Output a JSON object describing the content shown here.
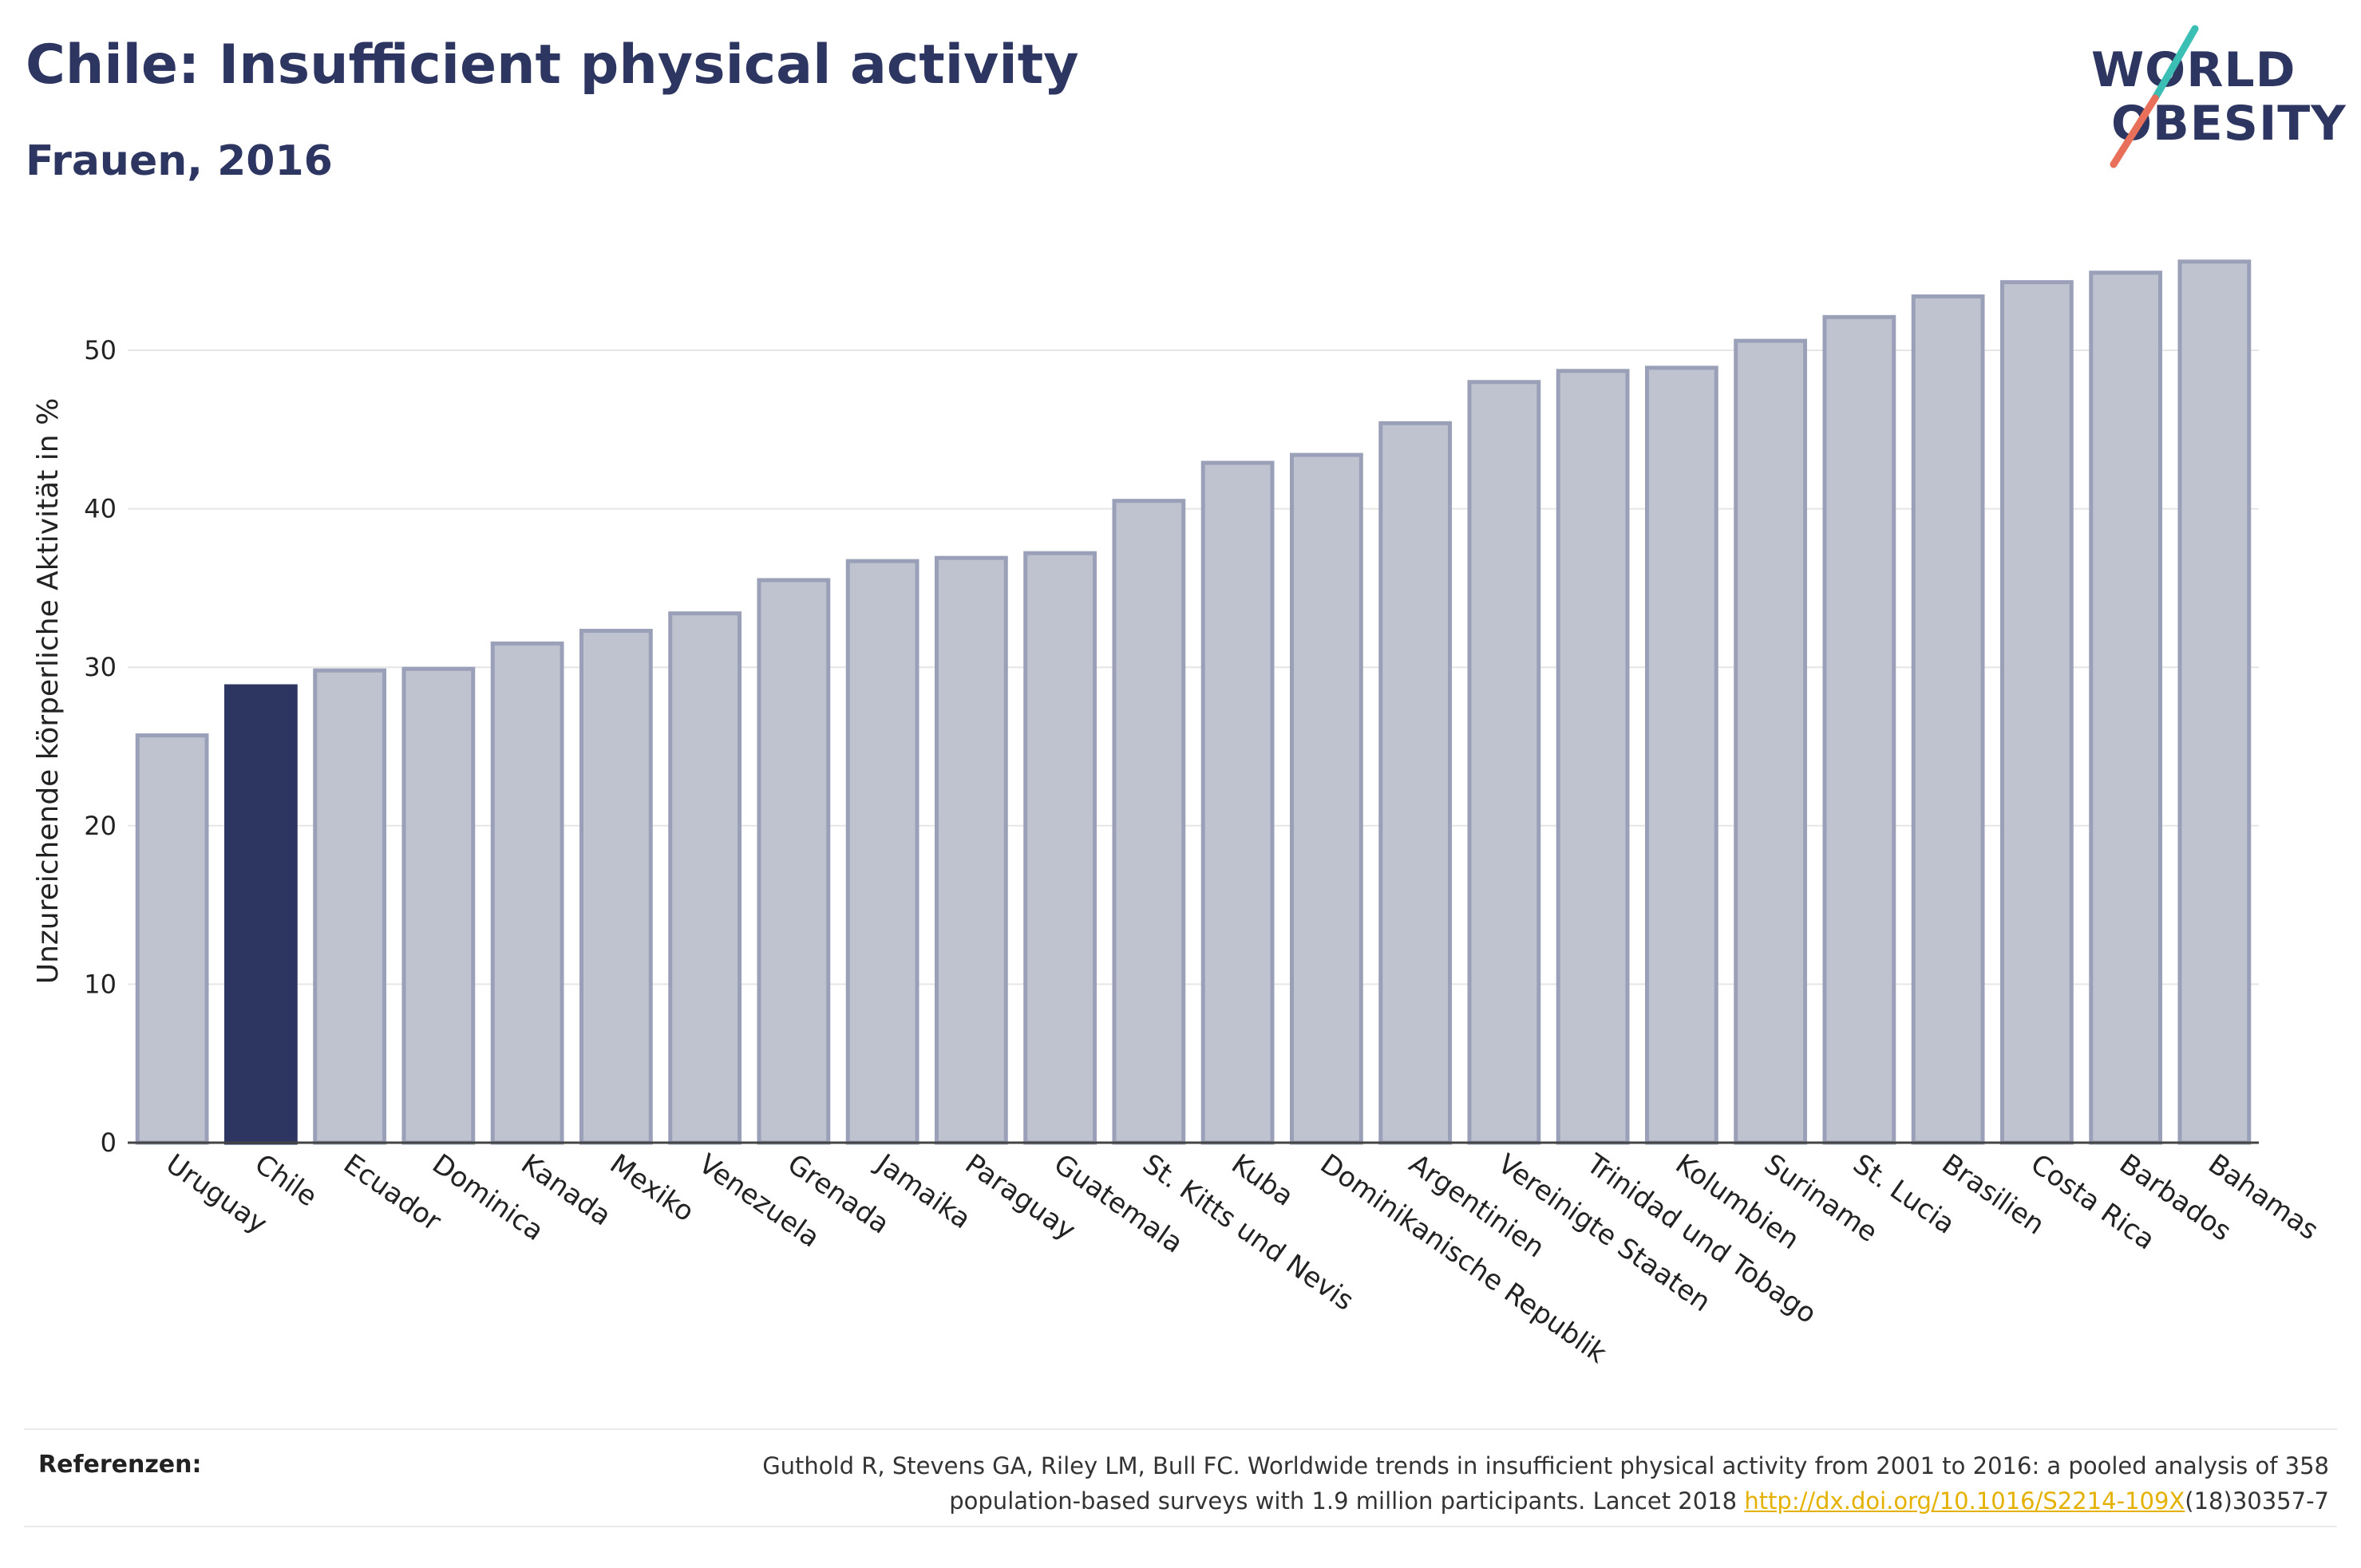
{
  "header": {
    "title": "Chile: Insufficient physical activity",
    "subtitle": "Frauen, 2016"
  },
  "logo": {
    "line1": "WORLD",
    "line2": "OBESITY",
    "colors": {
      "text": "#2d3561",
      "slash_top": "#3bbfb5",
      "slash_bottom": "#e8705a"
    }
  },
  "chart_data": {
    "type": "bar",
    "ylabel": "Unzureichende körperliche Aktivität in %",
    "xlabel": "",
    "ylim": [
      0,
      57
    ],
    "yticks": [
      0,
      10,
      20,
      30,
      40,
      50
    ],
    "grid": true,
    "highlight": "Chile",
    "colors": {
      "bar": "#bfc2cf",
      "bar_border": "#9aa0b8",
      "highlight": "#2d3561",
      "grid": "#e6e6e6",
      "axis": "#444444"
    },
    "categories": [
      "Uruguay",
      "Chile",
      "Ecuador",
      "Dominica",
      "Kanada",
      "Mexiko",
      "Venezuela",
      "Grenada",
      "Jamaika",
      "Paraguay",
      "Guatemala",
      "St. Kitts und Nevis",
      "Kuba",
      "Dominikanische Republik",
      "Argentinien",
      "Vereinigte Staaten",
      "Trinidad und Tobago",
      "Kolumbien",
      "Suriname",
      "St. Lucia",
      "Brasilien",
      "Costa Rica",
      "Barbados",
      "Bahamas"
    ],
    "values": [
      25.7,
      28.8,
      29.8,
      29.9,
      31.5,
      32.3,
      33.4,
      35.5,
      36.7,
      36.9,
      37.2,
      40.5,
      42.9,
      43.4,
      45.4,
      48.0,
      48.7,
      48.9,
      50.6,
      52.1,
      53.4,
      54.3,
      54.9,
      55.6
    ]
  },
  "footer": {
    "label": "Referenzen:",
    "line1": "Guthold R, Stevens GA, Riley LM, Bull FC. Worldwide trends in insufficient physical activity from 2001 to 2016: a pooled analysis of 358",
    "line2_pre": "population-based surveys with 1.9 million participants. Lancet 2018 ",
    "link": "http://dx.doi.org/10.1016/S2214-109X",
    "line2_post": "(18)30357-7"
  }
}
